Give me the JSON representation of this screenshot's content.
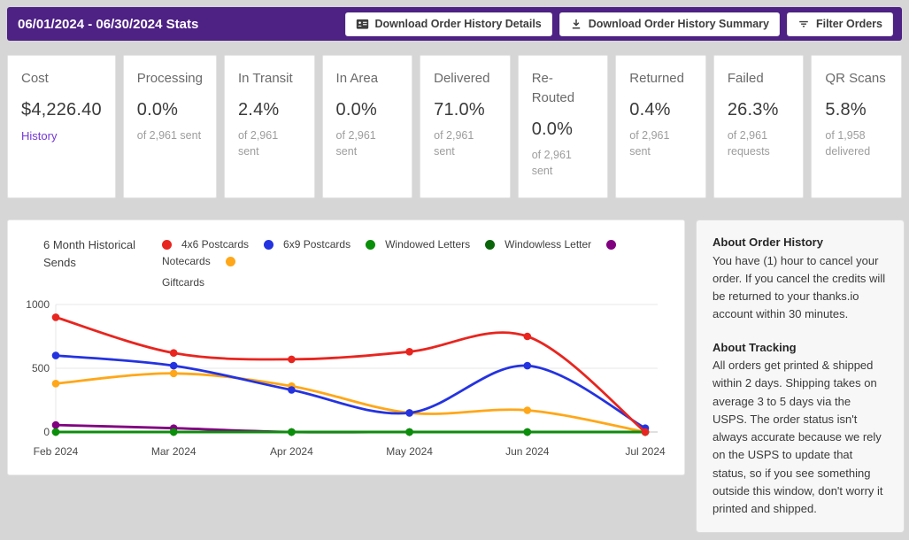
{
  "header": {
    "title": "06/01/2024 - 06/30/2024 Stats",
    "buttons": [
      {
        "label": "Download Order History Details",
        "icon": "contact-card-icon"
      },
      {
        "label": "Download Order History Summary",
        "icon": "download-icon"
      },
      {
        "label": "Filter Orders",
        "icon": "filter-icon"
      }
    ]
  },
  "stats": {
    "cards": [
      {
        "title": "Cost",
        "value": "$4,226.40",
        "link": "History"
      },
      {
        "title": "Processing",
        "value": "0.0%",
        "sub": "of 2,961 sent"
      },
      {
        "title": "In Transit",
        "value": "2.4%",
        "sub": "of 2,961 sent"
      },
      {
        "title": "In Area",
        "value": "0.0%",
        "sub": "of 2,961 sent"
      },
      {
        "title": "Delivered",
        "value": "71.0%",
        "sub": "of 2,961 sent"
      },
      {
        "title": "Re-Routed",
        "value": "0.0%",
        "sub": "of 2,961 sent"
      },
      {
        "title": "Returned",
        "value": "0.4%",
        "sub": "of 2,961 sent"
      },
      {
        "title": "Failed",
        "value": "26.3%",
        "sub": "of 2,961 requests"
      },
      {
        "title": "QR Scans",
        "value": "5.8%",
        "sub": "of 1,958 delivered"
      }
    ]
  },
  "chart_data": {
    "type": "line",
    "title": "6 Month Historical Sends",
    "x": [
      "Feb 2024",
      "Mar 2024",
      "Apr 2024",
      "May 2024",
      "Jun 2024",
      "Jul 2024"
    ],
    "ylim": [
      0,
      1000
    ],
    "yticks": [
      0,
      500,
      1000
    ],
    "grid": true,
    "legend_position": "top",
    "series": [
      {
        "name": "4x6 Postcards",
        "color": "#e8251f",
        "values": [
          900,
          620,
          570,
          630,
          750,
          0
        ]
      },
      {
        "name": "6x9 Postcards",
        "color": "#2433e0",
        "values": [
          600,
          520,
          330,
          150,
          520,
          30
        ]
      },
      {
        "name": "Windowed Letters",
        "color": "#0a8f0a",
        "values": [
          0,
          0,
          0,
          0,
          0,
          0
        ]
      },
      {
        "name": "Windowless Letter",
        "color": "#0a640a",
        "values": [
          0,
          0,
          0,
          0,
          0,
          0
        ]
      },
      {
        "name": "Notecards",
        "color": "#800080",
        "values": [
          55,
          30,
          0,
          0,
          0,
          0
        ]
      },
      {
        "name": "Giftcards",
        "color": "#ffa718",
        "values": [
          380,
          460,
          360,
          150,
          170,
          0
        ]
      }
    ]
  },
  "info": {
    "sections": [
      {
        "heading": "About Order History",
        "body": "You have (1) hour to cancel your order. If you cancel the credits will be returned to your thanks.io account within 30 minutes."
      },
      {
        "heading": "About Tracking",
        "body": "All orders get printed & shipped within 2 days. Shipping takes on average 3 to 5 days via the USPS. The order status isn't always accurate because we rely on the USPS to update that status, so if you see something outside this window, don't worry it printed and shipped."
      }
    ]
  },
  "colors": {
    "header_background": "#4e2185",
    "page_background": "#d6d6d6",
    "link_purple": "#7438d8",
    "grid_line": "#e7e7e7",
    "zero_line": "#c2c2c2"
  }
}
